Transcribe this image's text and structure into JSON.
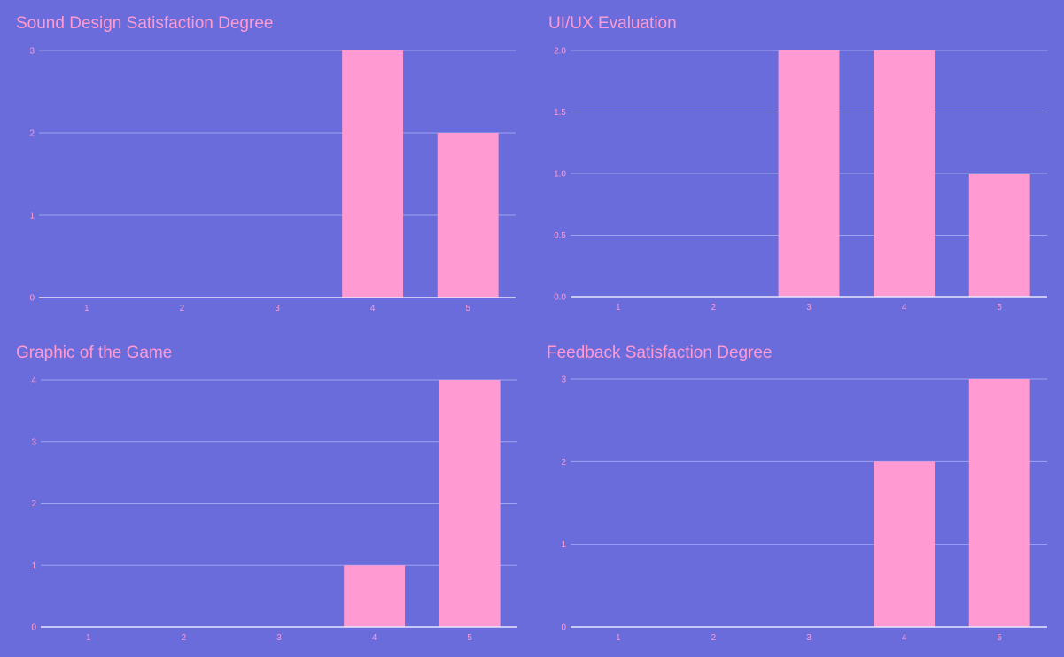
{
  "colors": {
    "background": "#6a6cdc",
    "bar": "#ff9bd2",
    "title": "#ff9bd2",
    "gridline": "#9fa4ee",
    "baseline": "#e6e7fb",
    "tick_label": "#ff9bd2"
  },
  "chart_data": [
    {
      "type": "bar",
      "title": "Sound Design Satisfaction Degree",
      "categories": [
        "1",
        "2",
        "3",
        "4",
        "5"
      ],
      "values": [
        0,
        0,
        0,
        3,
        2
      ],
      "ylim": [
        0,
        3
      ],
      "yticks": [
        "0",
        "1",
        "2",
        "3"
      ],
      "xlabel": "",
      "ylabel": "",
      "grid": true,
      "legend": "none"
    },
    {
      "type": "bar",
      "title": "UI/UX Evaluation",
      "categories": [
        "1",
        "2",
        "3",
        "4",
        "5"
      ],
      "values": [
        0,
        0,
        2,
        2,
        1
      ],
      "ylim": [
        0,
        2
      ],
      "yticks": [
        "0.0",
        "0.5",
        "1.0",
        "1.5",
        "2.0"
      ],
      "xlabel": "",
      "ylabel": "",
      "grid": true,
      "legend": "none"
    },
    {
      "type": "bar",
      "title": "Graphic of the Game",
      "categories": [
        "1",
        "2",
        "3",
        "4",
        "5"
      ],
      "values": [
        0,
        0,
        0,
        1,
        4
      ],
      "ylim": [
        0,
        4
      ],
      "yticks": [
        "0",
        "1",
        "2",
        "3",
        "4"
      ],
      "xlabel": "",
      "ylabel": "",
      "grid": true,
      "legend": "none"
    },
    {
      "type": "bar",
      "title": "Feedback Satisfaction Degree",
      "categories": [
        "1",
        "2",
        "3",
        "4",
        "5"
      ],
      "values": [
        0,
        0,
        0,
        2,
        3
      ],
      "ylim": [
        0,
        3
      ],
      "yticks": [
        "0",
        "1",
        "2",
        "3"
      ],
      "xlabel": "",
      "ylabel": "",
      "grid": true,
      "legend": "none"
    }
  ]
}
